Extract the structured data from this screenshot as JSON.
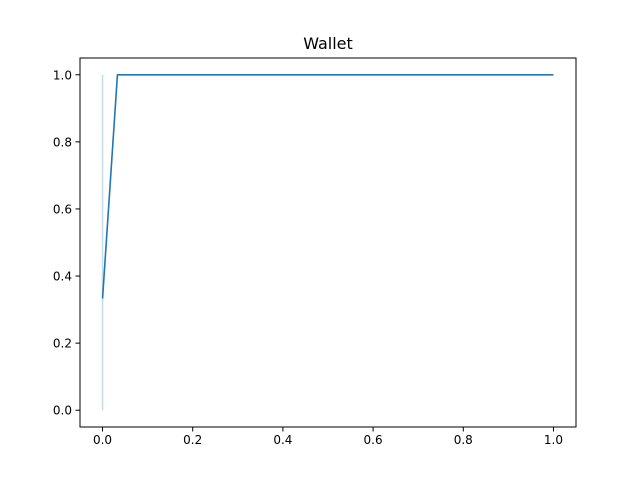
{
  "chart_data": {
    "type": "line",
    "title": "Wallet",
    "xlabel": "",
    "ylabel": "",
    "xlim": [
      -0.05,
      1.05
    ],
    "ylim": [
      -0.05,
      1.05
    ],
    "xticks": [
      0.0,
      0.2,
      0.4,
      0.6,
      0.8,
      1.0
    ],
    "yticks": [
      0.0,
      0.2,
      0.4,
      0.6,
      0.8,
      1.0
    ],
    "xtick_labels": [
      "0.0",
      "0.2",
      "0.4",
      "0.6",
      "0.8",
      "1.0"
    ],
    "ytick_labels": [
      "0.0",
      "0.2",
      "0.4",
      "0.6",
      "0.8",
      "1.0"
    ],
    "grid": false,
    "series": [
      {
        "color": "#1f77b4",
        "x": [
          0.0,
          0.033,
          1.0
        ],
        "y": [
          0.333,
          1.0,
          1.0
        ]
      },
      {
        "color": "#1f77b4",
        "opacity": 0.25,
        "x": [
          0.0,
          0.0
        ],
        "y": [
          0.0,
          1.0
        ]
      }
    ]
  }
}
